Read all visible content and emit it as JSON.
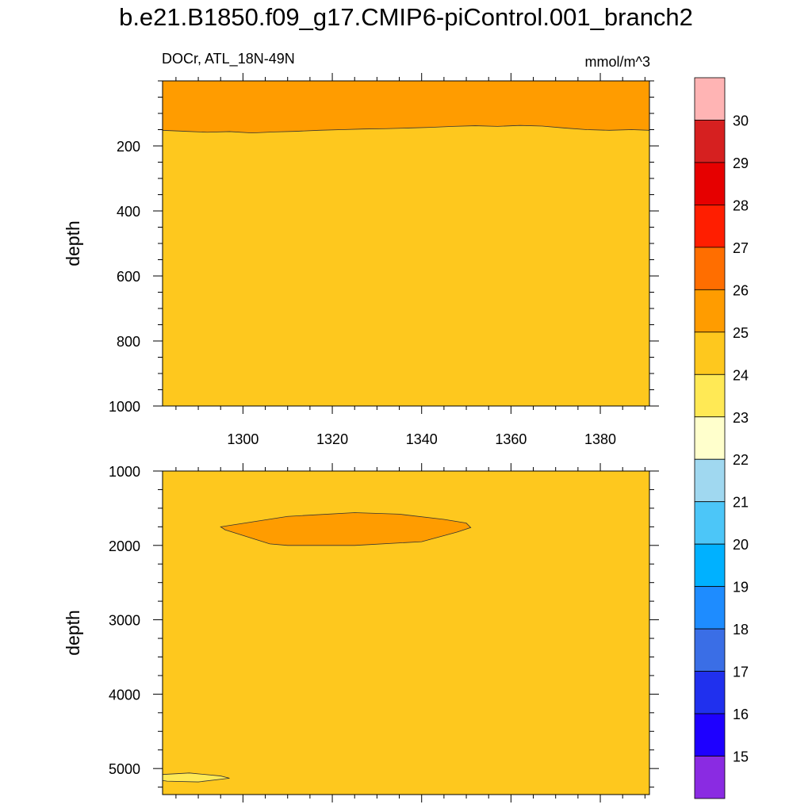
{
  "title": "b.e21.B1850.f09_g17.CMIP6-piControl.001_branch2",
  "subtitle_left": "DOCr, ATL_18N-49N",
  "subtitle_right": "mmol/m^3",
  "chart_data": [
    {
      "type": "heatmap",
      "panel": "upper",
      "ylabel": "depth",
      "xlabel": "",
      "xlim": [
        1282,
        1391
      ],
      "ylim": [
        0,
        1000
      ],
      "y_reversed": true,
      "x_ticks": [
        1300,
        1320,
        1340,
        1360,
        1380
      ],
      "y_ticks": [
        200,
        400,
        600,
        800,
        1000
      ],
      "background_level": "24-25",
      "regions": [
        {
          "level": "25-26",
          "description": "near-surface layer above contour",
          "boundary_x": [
            1282,
            1287,
            1292,
            1297,
            1302,
            1307,
            1312,
            1317,
            1322,
            1327,
            1332,
            1337,
            1342,
            1347,
            1352,
            1357,
            1362,
            1367,
            1372,
            1377,
            1382,
            1387,
            1391
          ],
          "boundary_depth": [
            152,
            155,
            158,
            156,
            160,
            157,
            155,
            152,
            150,
            148,
            147,
            145,
            143,
            140,
            138,
            140,
            137,
            139,
            145,
            150,
            152,
            150,
            152
          ]
        }
      ]
    },
    {
      "type": "heatmap",
      "panel": "lower",
      "ylabel": "depth",
      "xlabel": "",
      "xlim": [
        1282,
        1391
      ],
      "ylim": [
        1000,
        5350
      ],
      "y_reversed": true,
      "x_ticks": [
        1300,
        1320,
        1340,
        1360,
        1380
      ],
      "y_ticks": [
        1000,
        2000,
        3000,
        4000,
        5000
      ],
      "x_ticklabels_shown": false,
      "background_level": "24-25",
      "regions": [
        {
          "level": "25-26",
          "description": "lens between ~1300 and ~1351",
          "x": [
            1295,
            1310,
            1325,
            1335,
            1345,
            1350,
            1351,
            1348,
            1340,
            1325,
            1310,
            1306,
            1296
          ],
          "depth": [
            1750,
            1610,
            1560,
            1580,
            1650,
            1700,
            1760,
            1820,
            1950,
            2000,
            2000,
            1980,
            1790
          ]
        },
        {
          "level": "23-24",
          "description": "small sliver near bottom-left",
          "x": [
            1282,
            1288,
            1295,
            1297,
            1290,
            1283,
            1282
          ],
          "depth": [
            5080,
            5060,
            5100,
            5130,
            5180,
            5170,
            5160
          ]
        }
      ]
    }
  ],
  "colorbar": {
    "labels": [
      "15",
      "16",
      "17",
      "18",
      "19",
      "20",
      "21",
      "22",
      "23",
      "24",
      "25",
      "26",
      "27",
      "28",
      "29",
      "30"
    ],
    "colors": [
      "#a0f000",
      "#1e00ff",
      "#2030ee",
      "#3a6ee6",
      "#1e8cff",
      "#00b1ff",
      "#4cc6f8",
      "#a0d8f0",
      "#ffffcc",
      "#ffe955",
      "#fec81e",
      "#ff9c00",
      "#ff6e00",
      "#ff1e00",
      "#e60000",
      "#d62020",
      "#ffb4b4"
    ]
  },
  "colors": {
    "level_23_24": "#ffe955",
    "level_24_25": "#fec81e",
    "level_25_26": "#ff9c00"
  }
}
